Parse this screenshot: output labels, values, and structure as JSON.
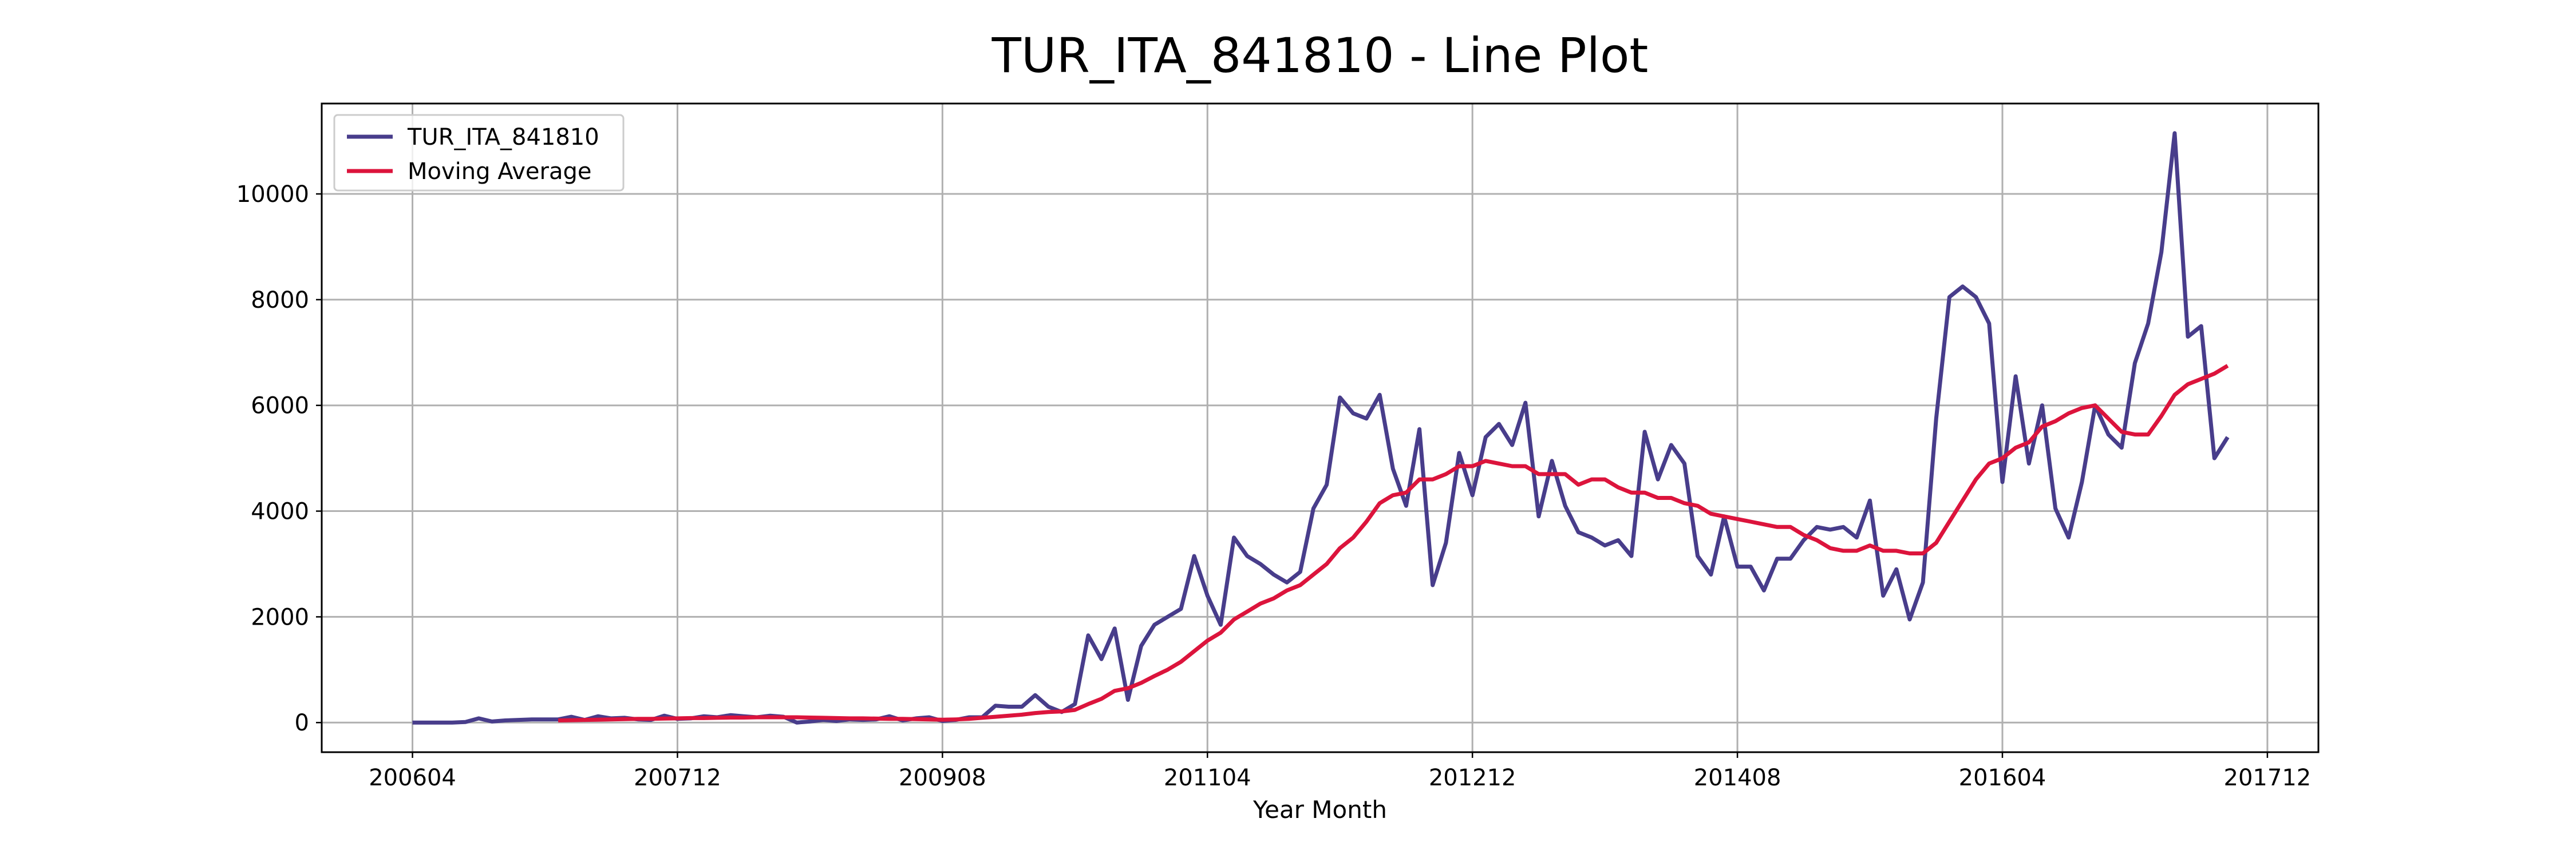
{
  "chart_data": {
    "type": "line",
    "title": "TUR_ITA_841810 - Line Plot",
    "x_label": "Year Month",
    "x": [
      "200604",
      "200605",
      "200606",
      "200607",
      "200608",
      "200609",
      "200610",
      "200611",
      "200612",
      "200701",
      "200702",
      "200703",
      "200704",
      "200705",
      "200706",
      "200707",
      "200708",
      "200709",
      "200710",
      "200711",
      "200712",
      "200801",
      "200802",
      "200803",
      "200804",
      "200805",
      "200806",
      "200807",
      "200808",
      "200809",
      "200810",
      "200811",
      "200812",
      "200901",
      "200902",
      "200903",
      "200904",
      "200905",
      "200906",
      "200907",
      "200908",
      "200909",
      "200910",
      "200911",
      "200912",
      "201001",
      "201002",
      "201003",
      "201004",
      "201005",
      "201006",
      "201007",
      "201008",
      "201009",
      "201010",
      "201011",
      "201012",
      "201101",
      "201102",
      "201103",
      "201104",
      "201105",
      "201106",
      "201107",
      "201108",
      "201109",
      "201110",
      "201111",
      "201112",
      "201201",
      "201202",
      "201203",
      "201204",
      "201205",
      "201206",
      "201207",
      "201208",
      "201209",
      "201210",
      "201211",
      "201212",
      "201301",
      "201302",
      "201303",
      "201304",
      "201305",
      "201306",
      "201307",
      "201308",
      "201309",
      "201310",
      "201311",
      "201312",
      "201401",
      "201402",
      "201403",
      "201404",
      "201405",
      "201406",
      "201407",
      "201408",
      "201409",
      "201410",
      "201411",
      "201412",
      "201501",
      "201502",
      "201503",
      "201504",
      "201505",
      "201506",
      "201507",
      "201508",
      "201509",
      "201510",
      "201511",
      "201512",
      "201601",
      "201602",
      "201603",
      "201604",
      "201605",
      "201606",
      "201607",
      "201608",
      "201609",
      "201610",
      "201611",
      "201612",
      "201701",
      "201702",
      "201703",
      "201704",
      "201705",
      "201706",
      "201707",
      "201708",
      "201709"
    ],
    "series": [
      {
        "name": "TUR_ITA_841810",
        "color": "#483d8b",
        "values": [
          0,
          0,
          0,
          0,
          10,
          80,
          20,
          40,
          50,
          60,
          60,
          60,
          110,
          50,
          120,
          80,
          90,
          60,
          50,
          130,
          70,
          80,
          120,
          100,
          140,
          120,
          100,
          130,
          110,
          0,
          20,
          50,
          30,
          60,
          50,
          60,
          120,
          40,
          80,
          100,
          30,
          50,
          100,
          100,
          320,
          300,
          300,
          520,
          300,
          200,
          350,
          1650,
          1200,
          1780,
          430,
          1450,
          1850,
          2000,
          2150,
          3150,
          2400,
          1850,
          3500,
          3150,
          3000,
          2800,
          2650,
          2850,
          4050,
          4500,
          6150,
          5850,
          5750,
          6200,
          4800,
          4100,
          5550,
          2600,
          3400,
          5100,
          4300,
          5400,
          5650,
          5250,
          6050,
          3900,
          4950,
          4100,
          3600,
          3500,
          3350,
          3450,
          3150,
          5500,
          4600,
          5250,
          4900,
          3150,
          2800,
          3900,
          2950,
          2950,
          2500,
          3100,
          3100,
          3450,
          3700,
          3650,
          3700,
          3500,
          4200,
          2400,
          2900,
          1950,
          2650,
          5750,
          8050,
          8250,
          8050,
          7550,
          4550,
          6550,
          4900,
          6000,
          4050,
          3500,
          4550,
          6000,
          5450,
          5200,
          6800,
          7550,
          8900,
          11150,
          7300,
          7500,
          5000,
          5400
        ]
      },
      {
        "name": "Moving Average",
        "color": "#dc143c",
        "values": [
          null,
          null,
          null,
          null,
          null,
          null,
          null,
          null,
          null,
          null,
          null,
          40,
          45,
          50,
          55,
          60,
          65,
          70,
          70,
          75,
          80,
          85,
          85,
          90,
          95,
          95,
          100,
          100,
          100,
          100,
          95,
          90,
          85,
          80,
          80,
          75,
          70,
          70,
          65,
          60,
          55,
          60,
          70,
          90,
          110,
          130,
          150,
          180,
          200,
          210,
          240,
          350,
          450,
          600,
          650,
          750,
          880,
          1000,
          1150,
          1350,
          1550,
          1700,
          1950,
          2100,
          2250,
          2350,
          2500,
          2600,
          2800,
          3000,
          3300,
          3500,
          3800,
          4150,
          4300,
          4350,
          4600,
          4600,
          4700,
          4850,
          4850,
          4950,
          4900,
          4850,
          4850,
          4700,
          4700,
          4700,
          4500,
          4600,
          4600,
          4450,
          4350,
          4350,
          4250,
          4250,
          4150,
          4100,
          3950,
          3900,
          3850,
          3800,
          3750,
          3700,
          3700,
          3550,
          3450,
          3300,
          3250,
          3250,
          3350,
          3250,
          3250,
          3200,
          3200,
          3400,
          3800,
          4200,
          4600,
          4900,
          5000,
          5200,
          5300,
          5600,
          5700,
          5850,
          5950,
          6000,
          5750,
          5500,
          5450,
          5450,
          5800,
          6200,
          6400,
          6500,
          6600,
          6750
        ]
      }
    ],
    "xticks": [
      "200604",
      "200712",
      "200908",
      "201104",
      "201212",
      "201408",
      "201604",
      "201712"
    ],
    "ylim": [
      -560,
      11710
    ],
    "yticks": [
      0,
      2000,
      4000,
      6000,
      8000,
      10000
    ],
    "grid": true,
    "legend": "upper left"
  }
}
